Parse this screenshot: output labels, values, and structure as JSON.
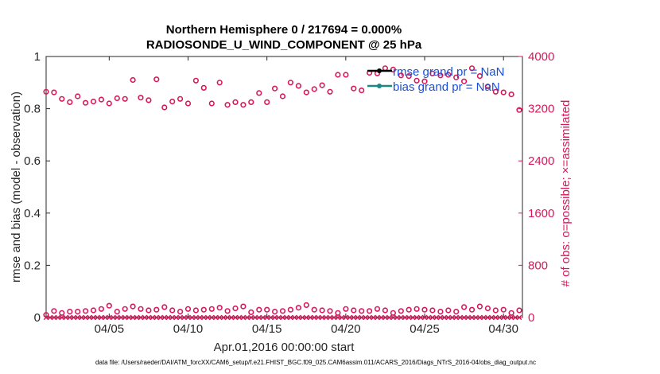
{
  "chart_data": {
    "type": "scatter",
    "title": "Northern Hemisphere 0 / 217694 = 0.000%",
    "subtitle": "RADIOSONDE_U_WIND_COMPONENT @ 25 hPa",
    "xlabel": "Apr.01,2016 00:00:00 start",
    "ylabel_left": "rmse and bias (model - observation)",
    "ylabel_right": "# of obs: o=possible; ×=assimilated",
    "xlim": [
      1,
      31.2
    ],
    "ylim_left": [
      0,
      1
    ],
    "ylim_right": [
      0,
      4000
    ],
    "x_ticks": [
      {
        "pos": 5,
        "label": "04/05"
      },
      {
        "pos": 10,
        "label": "04/10"
      },
      {
        "pos": 15,
        "label": "04/15"
      },
      {
        "pos": 20,
        "label": "04/20"
      },
      {
        "pos": 25,
        "label": "04/25"
      },
      {
        "pos": 30,
        "label": "04/30"
      }
    ],
    "y_ticks_left": [
      "0",
      "0.2",
      "0.4",
      "0.6",
      "0.8",
      "1"
    ],
    "y_ticks_right": [
      "0",
      "800",
      "1600",
      "2400",
      "3200",
      "4000"
    ],
    "legend": [
      {
        "label": "rmse grand pr = NaN",
        "color": "#000000"
      },
      {
        "label": "bias grand pr = NaN",
        "color": "#1a8a80"
      }
    ],
    "series": [
      {
        "name": "possible (00Z)",
        "marker": "o",
        "color": "#d8175b",
        "x_start": 1.0,
        "x_step": 1.0,
        "values": [
          3460,
          3350,
          3390,
          3310,
          3280,
          3350,
          3370,
          3650,
          3310,
          3280,
          3520,
          3600,
          3300,
          3300,
          3300,
          3390,
          3550,
          3500,
          3460,
          3720,
          3480,
          3740,
          3800,
          3700,
          3620,
          3710,
          3680,
          3820,
          3540,
          3450,
          3180
        ]
      },
      {
        "name": "possible (12Z)",
        "marker": "o",
        "color": "#d8175b",
        "x_start": 1.5,
        "x_step": 1.0,
        "values": [
          3450,
          3300,
          3290,
          3340,
          3360,
          3640,
          3330,
          3220,
          3350,
          3630,
          3280,
          3260,
          3260,
          3440,
          3510,
          3600,
          3450,
          3560,
          3720,
          3510,
          3750,
          3820,
          3710,
          3630,
          3740,
          3720,
          3620,
          3700,
          3460,
          3420
        ]
      },
      {
        "name": "possible (low)",
        "marker": "o",
        "color": "#d8175b",
        "x_start": 1.0,
        "x_step": 0.5,
        "values": [
          40,
          100,
          70,
          90,
          90,
          100,
          110,
          130,
          180,
          90,
          130,
          170,
          130,
          110,
          120,
          160,
          110,
          90,
          130,
          110,
          120,
          130,
          150,
          100,
          140,
          170,
          80,
          120,
          120,
          90,
          100,
          120,
          150,
          190,
          120,
          110,
          100,
          70,
          130,
          110,
          100,
          100,
          130,
          110,
          70,
          100,
          120,
          130,
          120,
          110,
          90,
          110,
          90,
          160,
          120,
          170,
          140,
          110,
          120,
          70,
          110
        ]
      },
      {
        "name": "assimilated",
        "marker": "x",
        "color": "#d8175b",
        "x_start": 1.0,
        "x_step": 0.25,
        "values": [
          0,
          0,
          0,
          0,
          0,
          0,
          0,
          0,
          0,
          0,
          0,
          0,
          0,
          0,
          0,
          0,
          0,
          0,
          0,
          0,
          0,
          0,
          0,
          0,
          0,
          0,
          0,
          0,
          0,
          0,
          0,
          0,
          0,
          0,
          0,
          0,
          0,
          0,
          0,
          0,
          0,
          0,
          0,
          0,
          0,
          0,
          0,
          0,
          0,
          0,
          0,
          0,
          0,
          0,
          0,
          0,
          0,
          0,
          0,
          0,
          0,
          0,
          0,
          0,
          0,
          0,
          0,
          0,
          0,
          0,
          0,
          0,
          0,
          0,
          0,
          0,
          0,
          0,
          0,
          0,
          0,
          0,
          0,
          0,
          0,
          0,
          0,
          0,
          0,
          0,
          0,
          0,
          0,
          0,
          0,
          0,
          0,
          0,
          0,
          0,
          0,
          0,
          0,
          0,
          0,
          0,
          0,
          0,
          0,
          0,
          0,
          0,
          0,
          0,
          0,
          0,
          0,
          0,
          0,
          0,
          0
        ]
      }
    ],
    "footnote": "data file: /Users/raeder/DAI/ATM_forcXX/CAM6_setup/f.e21.FHIST_BGC.f09_025.CAM6assim.011/ACARS_2016/Diags_NTrS_2016-04/obs_diag_output.nc"
  },
  "colors": {
    "right_axis": "#d8175b",
    "left_axis": "#262626",
    "legend_text": "#1a4fd6"
  }
}
